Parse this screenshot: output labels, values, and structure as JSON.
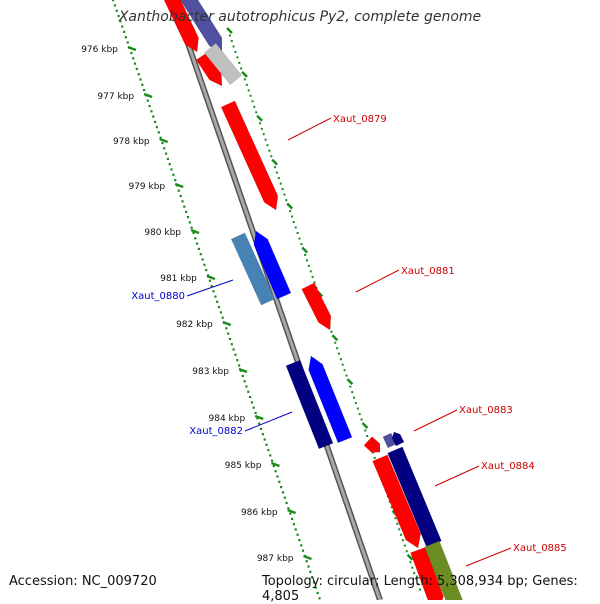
{
  "title": "Xanthobacter autotrophicus Py2, complete genome",
  "footer": {
    "accession": "Accession: NC_009720",
    "topology": "Topology: circular; Length: 5,308,934 bp; Genes: 4,805"
  },
  "colors": {
    "backbone": "#8a8a8a",
    "tick_green": "#1a8a1a",
    "forward_red": "#ff0000",
    "reverse_blue": "#0000ff",
    "reverse_navy": "#000080",
    "steel_blue": "#4682b4",
    "purple": "#5050a0",
    "grey": "#c0c0c0",
    "olive": "#6b8e23",
    "label_red": "#cc0000",
    "label_blue": "#0000cc"
  },
  "scale_labels": [
    "976 kbp",
    "977 kbp",
    "978 kbp",
    "979 kbp",
    "980 kbp",
    "981 kbp",
    "982 kbp",
    "983 kbp",
    "984 kbp",
    "985 kbp",
    "986 kbp",
    "987 kbp"
  ],
  "gene_labels": [
    {
      "text": "Xaut_0879",
      "strand": "forward"
    },
    {
      "text": "Xaut_0880",
      "strand": "reverse"
    },
    {
      "text": "Xaut_0881",
      "strand": "forward"
    },
    {
      "text": "Xaut_0882",
      "strand": "reverse"
    },
    {
      "text": "Xaut_0883",
      "strand": "forward"
    },
    {
      "text": "Xaut_0884",
      "strand": "forward"
    },
    {
      "text": "Xaut_0885",
      "strand": "forward"
    }
  ]
}
